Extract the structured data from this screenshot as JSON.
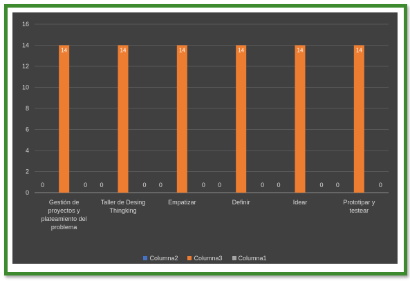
{
  "chart_data": {
    "type": "bar",
    "categories": [
      [
        "Gestión de",
        "proyectos y",
        "plateamiento del",
        "problema"
      ],
      [
        "Taller de Desing",
        "Thingking"
      ],
      [
        "Empatizar"
      ],
      [
        "Definir"
      ],
      [
        "Idear"
      ],
      [
        "Prototipar y",
        "testear"
      ]
    ],
    "series": [
      {
        "name": "Columna2",
        "values": [
          0,
          0,
          0,
          0,
          0,
          0
        ],
        "color": "#4472c4"
      },
      {
        "name": "Columna3",
        "values": [
          14,
          14,
          14,
          14,
          14,
          14
        ],
        "color": "#ed7d31"
      },
      {
        "name": "Columna1",
        "values": [
          0,
          0,
          0,
          0,
          0,
          0
        ],
        "color": "#a5a5a5"
      }
    ],
    "ylim": [
      0,
      16
    ],
    "yticks": [
      0,
      2,
      4,
      6,
      8,
      10,
      12,
      14,
      16
    ],
    "grid": true,
    "legend_position": "bottom",
    "data_labels": true,
    "background": "#404040",
    "frame_color": "#3d8a2f"
  }
}
